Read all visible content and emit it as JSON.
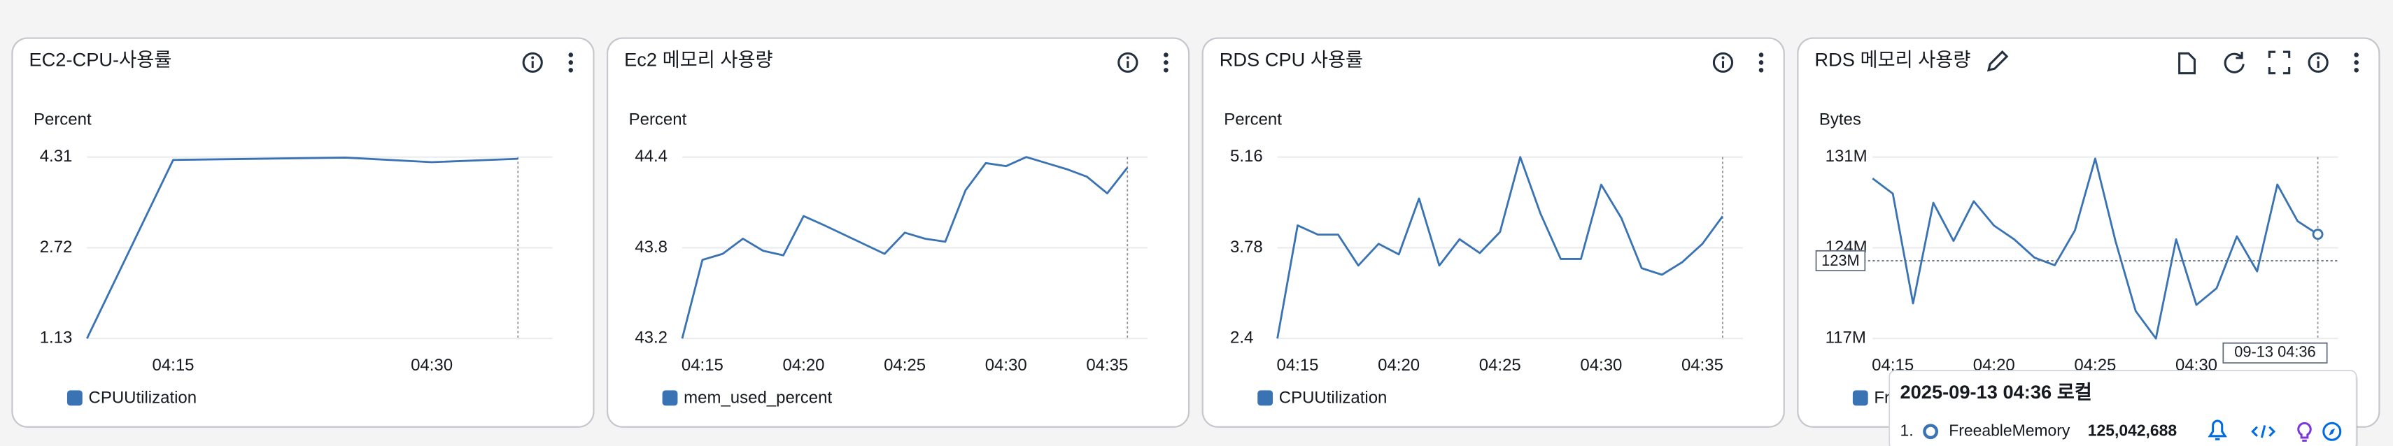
{
  "chart_data": [
    {
      "type": "line",
      "title": "EC2-CPU-사용률",
      "ylabel": "Percent",
      "x": [
        "04:10",
        "04:15",
        "04:25",
        "04:30",
        "04:35"
      ],
      "series": [
        {
          "name": "CPUUtilization",
          "color": "#3a73b3",
          "values": [
            1.13,
            4.26,
            4.3,
            4.22,
            4.28
          ]
        }
      ],
      "xlim": [
        "04:10",
        "04:37"
      ],
      "xticks": [
        "04:15",
        "04:30"
      ],
      "ylim": [
        1.13,
        4.31
      ],
      "yticks": [
        1.13,
        2.72,
        4.31
      ],
      "grid": true
    },
    {
      "type": "line",
      "title": "Ec2 메모리 사용량",
      "ylabel": "Percent",
      "x": [
        "04:14",
        "04:15",
        "04:16",
        "04:17",
        "04:18",
        "04:19",
        "04:20",
        "04:21",
        "04:24",
        "04:25",
        "04:26",
        "04:27",
        "04:28",
        "04:29",
        "04:30",
        "04:31",
        "04:32",
        "04:33",
        "04:34",
        "04:35",
        "04:36"
      ],
      "series": [
        {
          "name": "mem_used_percent",
          "color": "#3a73b3",
          "values": [
            43.2,
            43.72,
            43.76,
            43.86,
            43.78,
            43.75,
            44.01,
            43.95,
            43.76,
            43.9,
            43.86,
            43.84,
            44.18,
            44.36,
            44.34,
            44.4,
            44.36,
            44.32,
            44.27,
            44.16,
            44.33
          ]
        }
      ],
      "xlim": [
        "04:14",
        "04:37"
      ],
      "xticks": [
        "04:15",
        "04:20",
        "04:25",
        "04:30",
        "04:35"
      ],
      "ylim": [
        43.2,
        44.4
      ],
      "yticks": [
        43.2,
        43.8,
        44.4
      ],
      "grid": true
    },
    {
      "type": "line",
      "title": "RDS CPU 사용률",
      "ylabel": "Percent",
      "x": [
        "04:14",
        "04:15",
        "04:16",
        "04:17",
        "04:18",
        "04:19",
        "04:20",
        "04:21",
        "04:22",
        "04:23",
        "04:24",
        "04:25",
        "04:26",
        "04:27",
        "04:28",
        "04:29",
        "04:30",
        "04:31",
        "04:32",
        "04:33",
        "04:34",
        "04:35",
        "04:36"
      ],
      "series": [
        {
          "name": "CPUUtilization",
          "color": "#3a73b3",
          "values": [
            2.4,
            4.12,
            3.98,
            3.98,
            3.51,
            3.84,
            3.68,
            4.53,
            3.51,
            3.91,
            3.7,
            4.02,
            5.16,
            4.3,
            3.61,
            3.61,
            4.74,
            4.23,
            3.47,
            3.37,
            3.56,
            3.84,
            4.26
          ]
        }
      ],
      "xlim": [
        "04:14",
        "04:37"
      ],
      "xticks": [
        "04:15",
        "04:20",
        "04:25",
        "04:30",
        "04:35"
      ],
      "ylim": [
        2.4,
        5.16
      ],
      "yticks": [
        2.4,
        3.78,
        5.16
      ],
      "grid": true
    },
    {
      "type": "line",
      "title": "RDS 메모리 사용량",
      "ylabel": "Bytes",
      "x": [
        "04:14",
        "04:15",
        "04:16",
        "04:17",
        "04:18",
        "04:19",
        "04:20",
        "04:21",
        "04:22",
        "04:23",
        "04:24",
        "04:25",
        "04:26",
        "04:27",
        "04:28",
        "04:29",
        "04:30",
        "04:31",
        "04:32",
        "04:33",
        "04:34",
        "04:35",
        "04:36"
      ],
      "series": [
        {
          "name": "FreeableMemory",
          "color": "#3a73b3",
          "values": [
            129350000,
            128180000,
            119710000,
            127470000,
            124530000,
            127590000,
            125710000,
            124650000,
            123240000,
            122650000,
            125350000,
            130880000,
            124530000,
            119120000,
            117000000,
            124650000,
            119590000,
            120880000,
            124880000,
            122180000,
            128880000,
            126060000,
            125042688
          ]
        }
      ],
      "xlim": [
        "04:14",
        "04:37"
      ],
      "xticks": [
        "04:15",
        "04:20",
        "04:25",
        "04:30"
      ],
      "ylim": [
        117000000,
        131000000
      ],
      "yticks": [
        {
          "value": 117000000,
          "label": "117M"
        },
        {
          "value": 124000000,
          "label": "124M"
        },
        {
          "value": 131000000,
          "label": "131M"
        }
      ],
      "grid": true,
      "hover": {
        "y": {
          "value": 123000000,
          "label": "123M"
        },
        "time": "09-13 04:36"
      }
    }
  ],
  "tooltip": {
    "title": "2025-09-13 04:36 로컬",
    "index": "1.",
    "series": "FreeableMemory",
    "value": 125042688,
    "value_label": "125,042,688"
  }
}
